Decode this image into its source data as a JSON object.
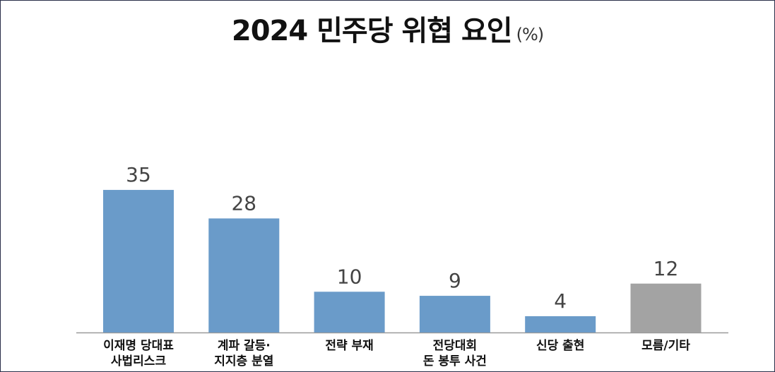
{
  "chart_data": {
    "type": "bar",
    "title": "2024 민주당 위협 요인",
    "unit": "(%)",
    "categories": [
      "이재명 당대표\n사법리스크",
      "계파 갈등·\n지지층 분열",
      "전략 부재",
      "전당대회\n돈 봉투 사건",
      "신당 출현",
      "모름/기타"
    ],
    "values": [
      35,
      28,
      10,
      9,
      4,
      12
    ],
    "colors": [
      "#6a9bc9",
      "#6a9bc9",
      "#6a9bc9",
      "#6a9bc9",
      "#6a9bc9",
      "#a3a3a3"
    ]
  }
}
